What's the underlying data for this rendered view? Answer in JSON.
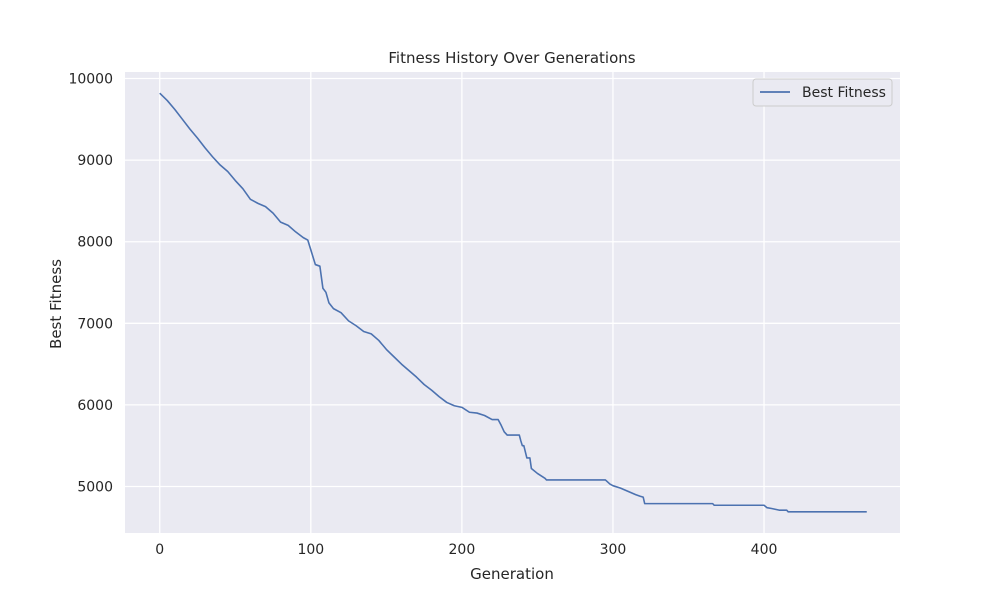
{
  "chart_data": {
    "type": "line",
    "title": "Fitness History Over Generations",
    "xlabel": "Generation",
    "ylabel": "Best Fitness",
    "xlim": [
      -23,
      490
    ],
    "ylim": [
      4430,
      10080
    ],
    "xticks": [
      0,
      100,
      200,
      300,
      400
    ],
    "yticks": [
      5000,
      6000,
      7000,
      8000,
      9000,
      10000
    ],
    "grid": true,
    "legend_position": "top-right",
    "colors": {
      "series": "#4c72b0",
      "plot_bg": "#eaeaf2",
      "grid": "#ffffff"
    },
    "series": [
      {
        "name": "Best Fitness",
        "x": [
          0,
          5,
          10,
          15,
          20,
          25,
          30,
          35,
          40,
          45,
          50,
          55,
          60,
          65,
          70,
          75,
          80,
          85,
          90,
          95,
          98,
          100,
          103,
          106,
          108,
          110,
          112,
          115,
          120,
          125,
          130,
          135,
          140,
          145,
          150,
          155,
          160,
          165,
          170,
          175,
          180,
          185,
          190,
          195,
          200,
          205,
          210,
          215,
          220,
          224,
          226,
          228,
          230,
          233,
          236,
          238,
          239,
          240,
          241,
          243,
          244,
          245,
          246,
          250,
          255,
          256,
          260,
          270,
          280,
          290,
          295,
          298,
          300,
          305,
          310,
          315,
          318,
          320,
          321,
          325,
          350,
          366,
          367,
          380,
          400,
          402,
          405,
          410,
          415,
          416,
          420,
          440,
          468
        ],
        "y": [
          9820,
          9730,
          9620,
          9500,
          9380,
          9270,
          9150,
          9040,
          8940,
          8860,
          8750,
          8650,
          8520,
          8470,
          8430,
          8350,
          8240,
          8200,
          8120,
          8050,
          8020,
          7900,
          7720,
          7700,
          7430,
          7380,
          7250,
          7180,
          7130,
          7030,
          6970,
          6900,
          6870,
          6790,
          6680,
          6590,
          6500,
          6420,
          6340,
          6250,
          6180,
          6100,
          6030,
          5990,
          5970,
          5910,
          5900,
          5870,
          5820,
          5820,
          5750,
          5670,
          5630,
          5630,
          5630,
          5630,
          5560,
          5500,
          5500,
          5350,
          5350,
          5350,
          5220,
          5160,
          5100,
          5080,
          5080,
          5080,
          5080,
          5080,
          5080,
          5030,
          5010,
          4980,
          4940,
          4900,
          4880,
          4870,
          4790,
          4790,
          4790,
          4790,
          4770,
          4770,
          4770,
          4740,
          4730,
          4710,
          4710,
          4690,
          4690,
          4690,
          4690
        ]
      }
    ]
  }
}
